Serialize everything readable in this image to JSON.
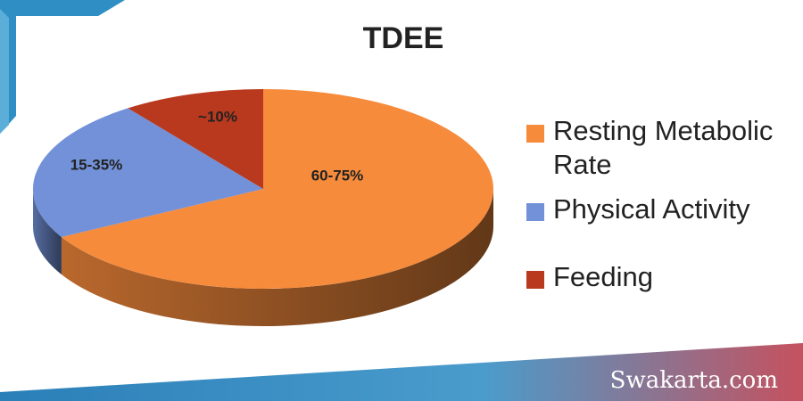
{
  "chart_data": {
    "type": "pie",
    "title": "TDEE",
    "categories": [
      "Resting Metabolic Rate",
      "Physical Activity",
      "Feeding"
    ],
    "values": [
      67,
      23,
      10
    ],
    "value_labels": [
      "60-75%",
      "15-35%",
      "~10%"
    ],
    "colors": [
      "#f68b3c",
      "#7291d8",
      "#b8391d"
    ],
    "legend": "right"
  },
  "watermark": "Swakarta.com"
}
